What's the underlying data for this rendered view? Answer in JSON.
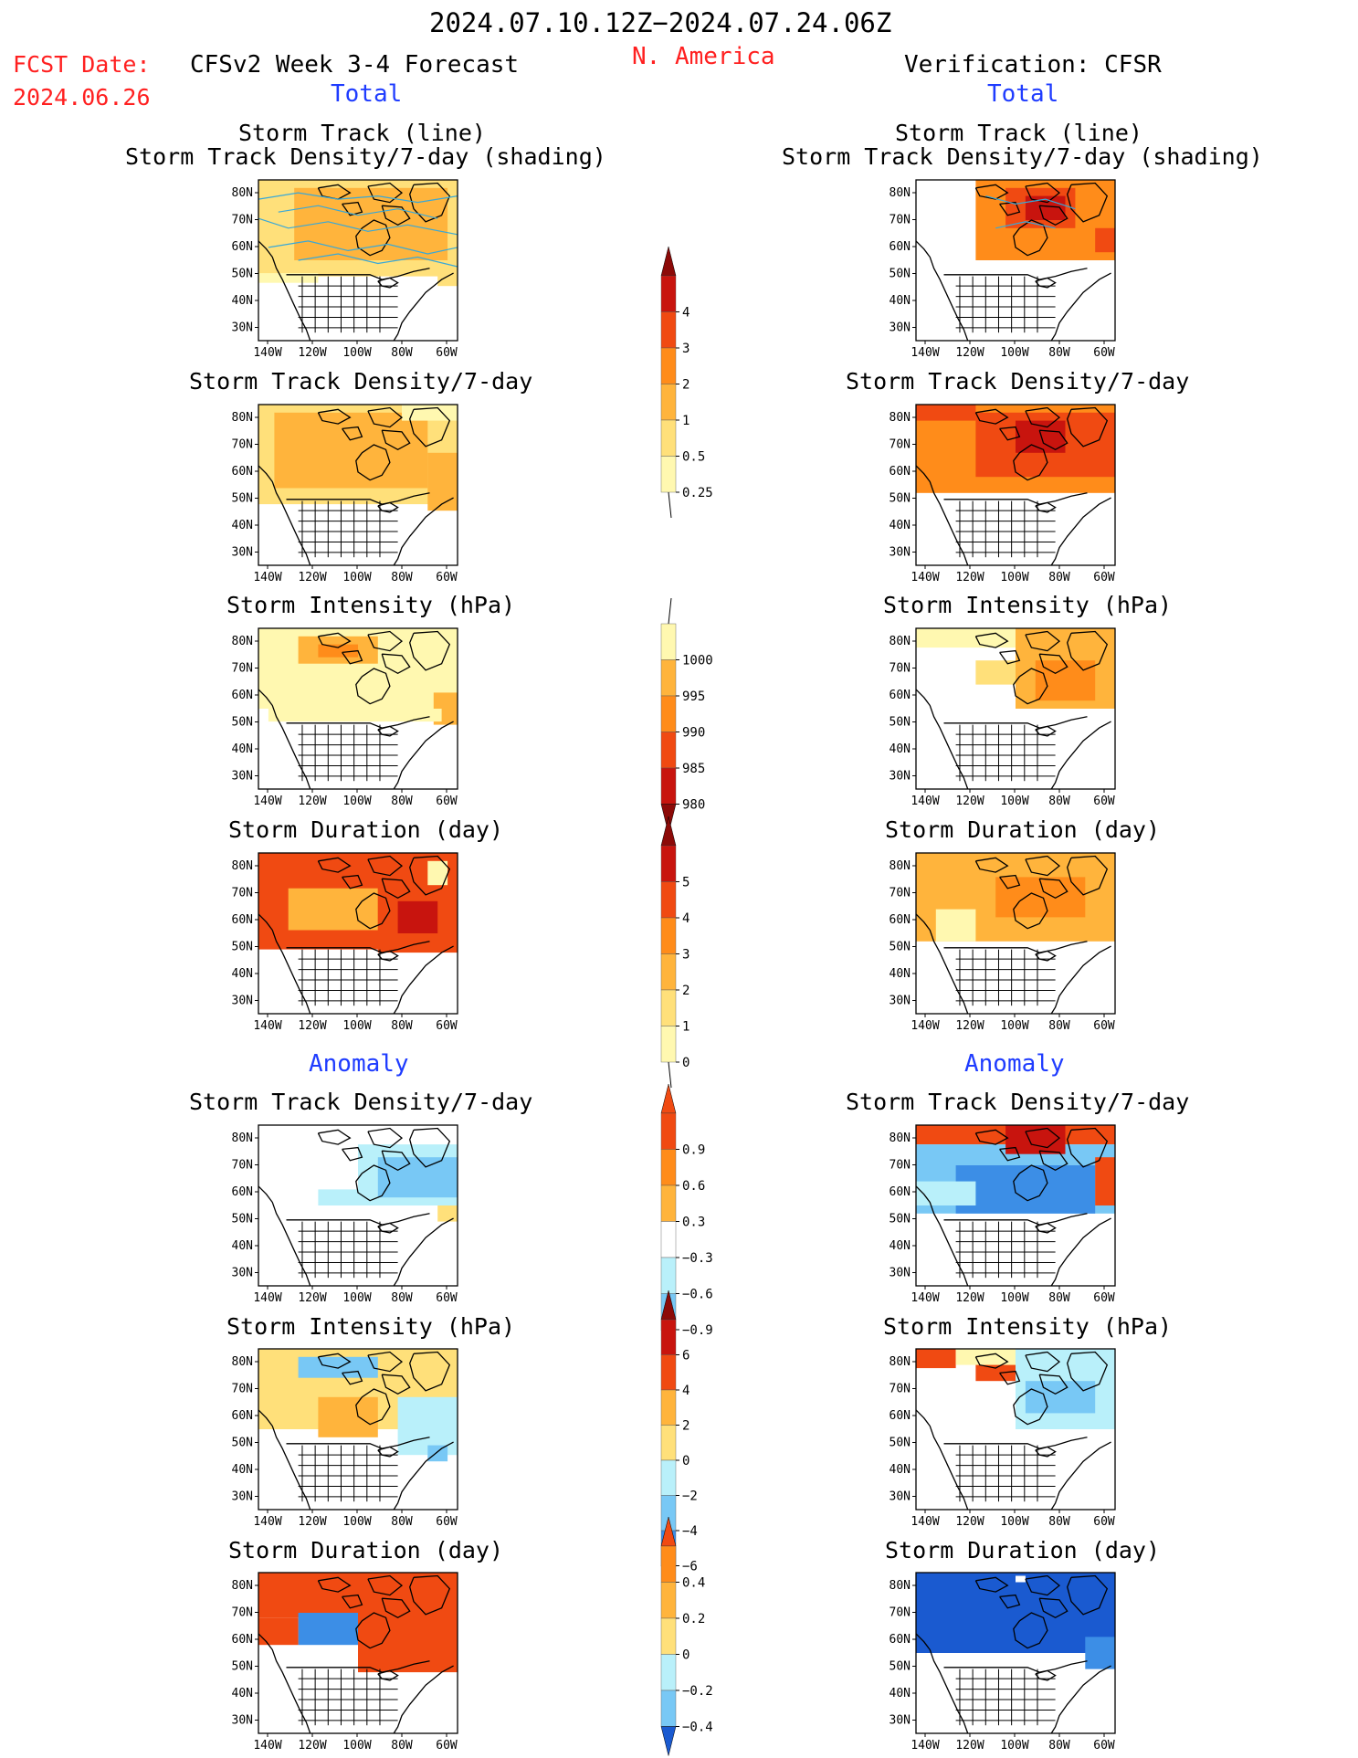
{
  "header": {
    "date_range": "2024.07.10.12Z−2024.07.24.06Z",
    "region": "N. America",
    "fcst_label": "FCST Date:",
    "fcst_date": "2024.06.26",
    "forecast_title": "CFSv2 Week 3-4 Forecast",
    "verification_title": "Verification: CFSR",
    "total_label": "Total",
    "anomaly_label": "Anomaly"
  },
  "axes": {
    "lat_labels": [
      "80N",
      "70N",
      "60N",
      "50N",
      "40N",
      "30N"
    ],
    "lon_labels": [
      "140W",
      "120W",
      "100W",
      "80W",
      "60W"
    ]
  },
  "panels": {
    "track": {
      "title1": "Storm Track (line)",
      "title2": "Storm Track Density/7-day (shading)"
    },
    "density": {
      "title": "Storm Track Density/7-day"
    },
    "intensity": {
      "title": "Storm Intensity (hPa)"
    },
    "duration": {
      "title": "Storm Duration (day)"
    }
  },
  "colors": {
    "warm": [
      "#fff8b0",
      "#ffe07a",
      "#ffb43c",
      "#ff8c1a",
      "#f04a12",
      "#c8140e",
      "#8c0a08"
    ],
    "cool": [
      "#b9f0fa",
      "#78c8f5",
      "#3c8ee6",
      "#1a5ad0"
    ],
    "track_line": "#38a8d8",
    "coast": "#000000"
  },
  "colorbars": {
    "density_total": {
      "labels": [
        "4",
        "3",
        "2",
        "1",
        "0.5",
        "0.25"
      ]
    },
    "intensity_total": {
      "labels": [
        "1000",
        "995",
        "990",
        "985",
        "980"
      ]
    },
    "duration_total": {
      "labels": [
        "5",
        "4",
        "3",
        "2",
        "1",
        "0"
      ]
    },
    "density_anom": {
      "labels": [
        "0.9",
        "0.6",
        "0.3",
        "−0.3",
        "−0.6",
        "−0.9"
      ]
    },
    "intensity_anom": {
      "labels": [
        "6",
        "4",
        "2",
        "0",
        "−2",
        "−4",
        "−6"
      ]
    },
    "duration_anom": {
      "labels": [
        "0.4",
        "0.2",
        "0",
        "−0.2",
        "−0.4"
      ]
    }
  }
}
